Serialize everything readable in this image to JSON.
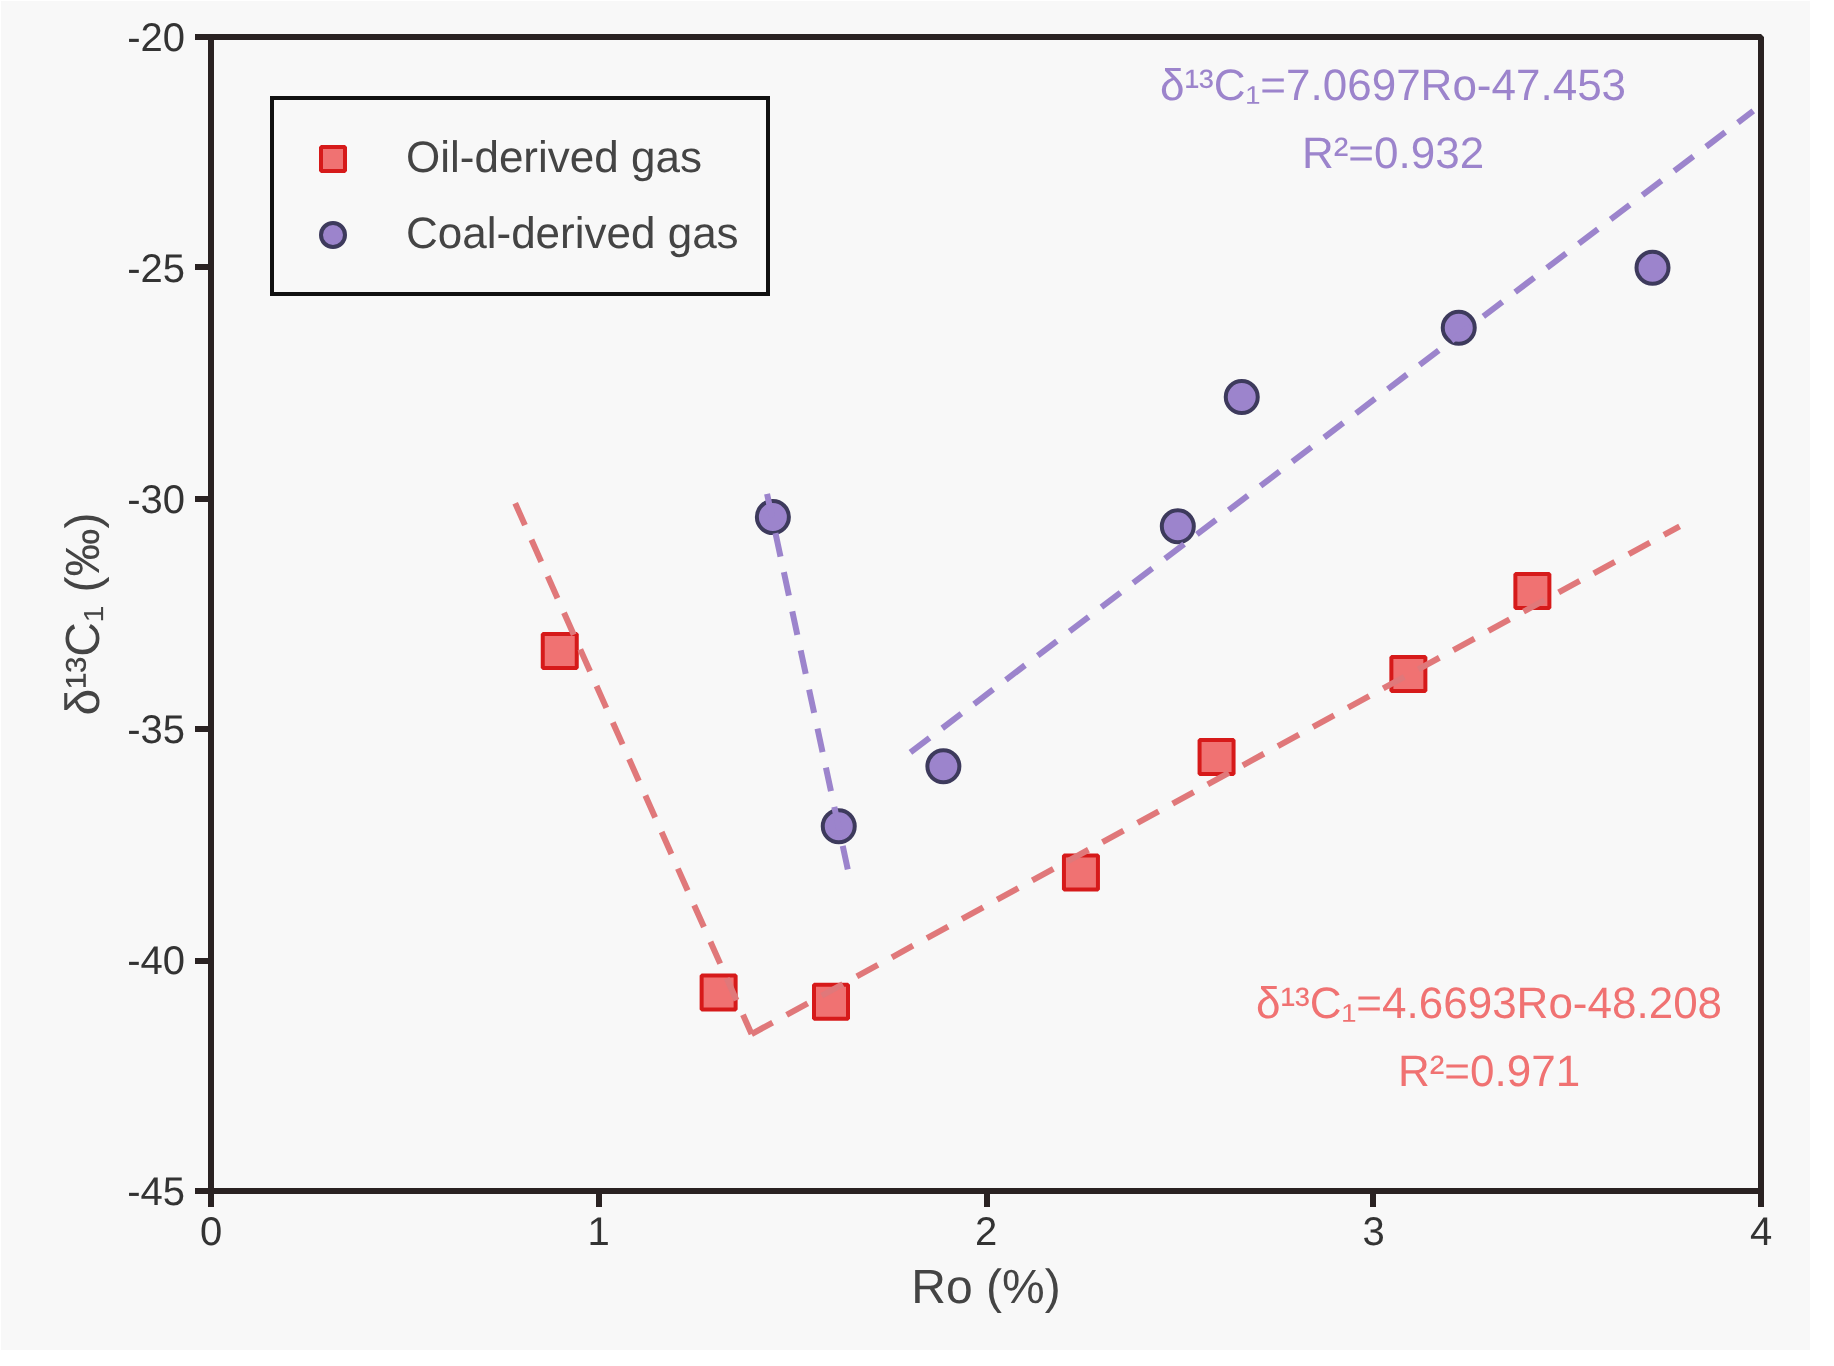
{
  "chart_data": {
    "type": "scatter",
    "xlabel": "Ro (%)",
    "ylabel": "δ¹³C₁ (‰)",
    "xlim": [
      0,
      4
    ],
    "ylim": [
      -45,
      -20
    ],
    "xticks": [
      0,
      1,
      2,
      3,
      4
    ],
    "yticks": [
      -45,
      -40,
      -35,
      -30,
      -25,
      -20
    ],
    "grid": false,
    "legend": "top left",
    "series": [
      {
        "name": "Oil-derived gas",
        "color": "#f07272",
        "marker": "square",
        "x": [
          0.9,
          1.31,
          1.6,
          2.245,
          2.595,
          3.09,
          3.41
        ],
        "values": [
          -33.3,
          -40.7,
          -40.9,
          -38.1,
          -35.6,
          -33.8,
          -32.0
        ]
      },
      {
        "name": "Coal-derived gas",
        "color": "#9c84cc",
        "marker": "circle",
        "x": [
          1.45,
          1.62,
          1.89,
          2.495,
          2.66,
          3.22,
          3.72
        ],
        "values": [
          -30.4,
          -37.1,
          -35.8,
          -30.6,
          -27.8,
          -26.3,
          -25.0
        ]
      },
      {
        "type": "line",
        "color": "#e0787a",
        "line_style": "dashed",
        "marker": "none",
        "x": [
          0.785,
          1.395
        ],
        "values": [
          -30.1,
          -41.6
        ]
      },
      {
        "type": "line",
        "color": "#e0787a",
        "line_style": "dashed",
        "marker": "none",
        "x": [
          1.395,
          3.79
        ],
        "values": [
          -41.6,
          -30.6
        ]
      },
      {
        "type": "line",
        "color": "#9c84cc",
        "line_style": "dashed",
        "marker": "none",
        "x": [
          1.435,
          1.645
        ],
        "values": [
          -29.9,
          -38.1
        ]
      },
      {
        "type": "line",
        "color": "#9c84cc",
        "line_style": "dashed",
        "marker": "none",
        "x": [
          1.805,
          3.98
        ],
        "values": [
          -35.5,
          -21.6
        ]
      }
    ],
    "annotations": [
      "δ¹³C₁=7.0697Ro-47.453",
      "R²=0.932",
      "δ¹³C₁=4.6693Ro-48.208",
      "R²=0.971"
    ]
  }
}
